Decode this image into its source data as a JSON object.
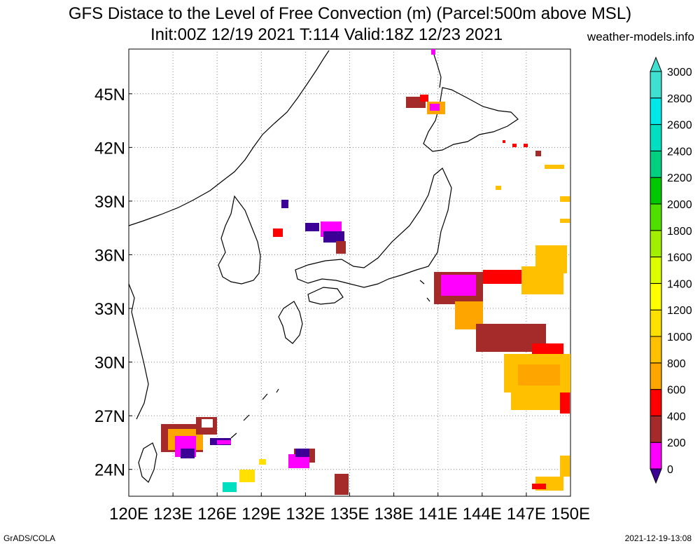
{
  "title": "GFS Distace to the Level of Free Convection (m) (Parcel:500m above MSL)",
  "subtitle": "Init:00Z 12/19 2021 T:114 Valid:18Z 12/23 2021",
  "source": "weather-models.info",
  "footer_left": "GrADS/COLA",
  "footer_right": "2021-12-19-13:08",
  "map": {
    "lon_range": [
      120,
      150
    ],
    "lat_range": [
      22.5,
      47.5
    ],
    "lon_ticks": [
      "120E",
      "123E",
      "126E",
      "129E",
      "132E",
      "135E",
      "138E",
      "141E",
      "144E",
      "147E",
      "150E"
    ],
    "lat_ticks": [
      "24N",
      "27N",
      "30N",
      "33N",
      "36N",
      "39N",
      "42N",
      "45N"
    ],
    "grid": "dotted"
  },
  "colorbar": {
    "labels": [
      "0",
      "200",
      "400",
      "600",
      "800",
      "1000",
      "1200",
      "1400",
      "1600",
      "1800",
      "2000",
      "2200",
      "2400",
      "2600",
      "2800",
      "3000"
    ],
    "colors": [
      "#3c0096",
      "#ff00ff",
      "#a52a2a",
      "#ff0000",
      "#ffa500",
      "#ffc000",
      "#ffe000",
      "#ffff00",
      "#dcff00",
      "#a0f000",
      "#50e000",
      "#00c800",
      "#00d080",
      "#00e0c0",
      "#00e8e8",
      "#40e0d0"
    ]
  }
}
